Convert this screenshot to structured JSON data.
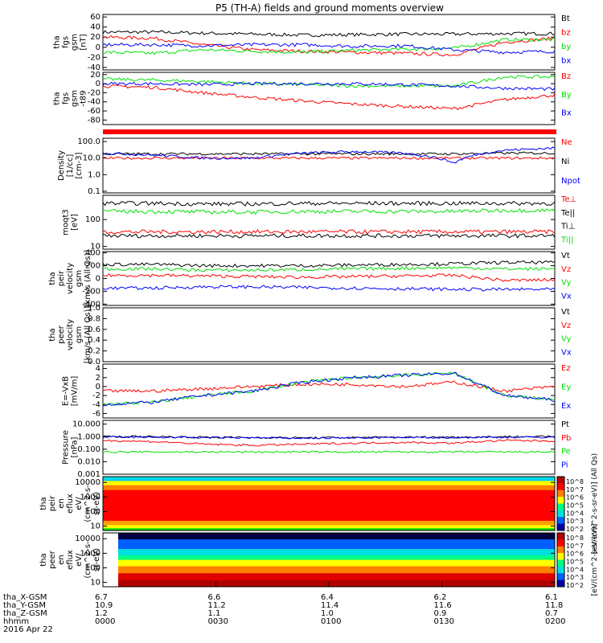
{
  "title": "P5 (TH-A) fields and ground moments overview",
  "colors": {
    "black": "#000000",
    "red": "#ff0000",
    "green": "#00e000",
    "blue": "#0000ff"
  },
  "panels": [
    {
      "id": "fgs",
      "ylabel": [
        "tha",
        "fgs",
        "gsm",
        "[nT]"
      ],
      "ticks": [
        {
          "v": 60,
          "t": "60"
        },
        {
          "v": 40,
          "t": "40"
        },
        {
          "v": 20,
          "t": "20"
        },
        {
          "v": 0,
          "t": "0"
        },
        {
          "v": -20,
          "t": "-20"
        },
        {
          "v": -40,
          "t": "-40"
        }
      ],
      "legend": [
        {
          "t": "Bt",
          "c": "black"
        },
        {
          "t": "bz",
          "c": "red"
        },
        {
          "t": "by",
          "c": "green"
        },
        {
          "t": "bx",
          "c": "blue"
        }
      ]
    },
    {
      "id": "fgs_model",
      "ylabel": [
        "tha",
        "fgs",
        "gsm",
        "-t89"
      ],
      "ticks": [
        {
          "v": 20,
          "t": "20"
        },
        {
          "v": 0,
          "t": "0"
        },
        {
          "v": -20,
          "t": "-20"
        },
        {
          "v": -40,
          "t": "-40"
        },
        {
          "v": -60,
          "t": "-60"
        },
        {
          "v": -80,
          "t": "-80"
        }
      ],
      "legend": [
        {
          "t": "Bz",
          "c": "red"
        },
        {
          "t": "By",
          "c": "green"
        },
        {
          "t": "Bx",
          "c": "blue"
        }
      ]
    },
    {
      "id": "density",
      "ylabel": [
        "Density",
        "[1/cc]",
        "[cm-3]"
      ],
      "ticks": [
        {
          "v": 2,
          "t": "100.0"
        },
        {
          "v": 1,
          "t": "10.0"
        },
        {
          "v": 0,
          "t": "1.0"
        },
        {
          "v": -1,
          "t": "0.1"
        }
      ],
      "legend": [
        {
          "t": "Ne",
          "c": "red"
        },
        {
          "t": "Ni",
          "c": "black"
        },
        {
          "t": "Npot",
          "c": "blue"
        }
      ]
    },
    {
      "id": "temp",
      "ylabel": [
        "moqt3",
        "[eV]"
      ],
      "ticks": [
        {
          "v": 2,
          "t": "100"
        },
        {
          "v": 1,
          "t": "10"
        }
      ],
      "legend": [
        {
          "t": "Te⊥",
          "c": "red"
        },
        {
          "t": "Te||",
          "c": "black"
        },
        {
          "t": "Ti⊥",
          "c": "black"
        },
        {
          "t": "Ti||",
          "c": "green"
        }
      ]
    },
    {
      "id": "peir_vel",
      "ylabel": [
        "tha",
        "peir",
        "velocity",
        "gsm",
        "[km/s (All Qs)]"
      ],
      "ticks": [
        {
          "v": 400,
          "t": "400"
        },
        {
          "v": 200,
          "t": "200"
        },
        {
          "v": 0,
          "t": "0"
        },
        {
          "v": -200,
          "t": "-200"
        },
        {
          "v": -400,
          "t": "-400"
        }
      ],
      "legend": [
        {
          "t": "Vt",
          "c": "black"
        },
        {
          "t": "Vz",
          "c": "red"
        },
        {
          "t": "Vy",
          "c": "green"
        },
        {
          "t": "Vx",
          "c": "blue"
        }
      ]
    },
    {
      "id": "peer_vel",
      "ylabel": [
        "tha",
        "peer",
        "velocity",
        "gsm",
        "[km/s (All Qs)]"
      ],
      "ticks": [
        {
          "v": 1.0,
          "t": "1.0"
        },
        {
          "v": 0.8,
          "t": "0.8"
        },
        {
          "v": 0.6,
          "t": "0.6"
        },
        {
          "v": 0.4,
          "t": "0.4"
        },
        {
          "v": 0.2,
          "t": "0.2"
        },
        {
          "v": 0.0,
          "t": "0.0"
        }
      ],
      "legend": [
        {
          "t": "Vt",
          "c": "black"
        },
        {
          "t": "Vz",
          "c": "red"
        },
        {
          "t": "Vy",
          "c": "green"
        },
        {
          "t": "Vx",
          "c": "blue"
        }
      ]
    },
    {
      "id": "efield",
      "ylabel": [
        "E=-VxB",
        "[mV/m]"
      ],
      "ticks": [
        {
          "v": 4,
          "t": "4"
        },
        {
          "v": 2,
          "t": "2"
        },
        {
          "v": 0,
          "t": "0"
        },
        {
          "v": -2,
          "t": "-2"
        },
        {
          "v": -4,
          "t": "-4"
        },
        {
          "v": -6,
          "t": "-6"
        }
      ],
      "legend": [
        {
          "t": "Ez",
          "c": "red"
        },
        {
          "t": "Ey",
          "c": "green"
        },
        {
          "t": "Ex",
          "c": "blue"
        }
      ]
    },
    {
      "id": "pressure",
      "ylabel": [
        "Pressure",
        "[nPa]"
      ],
      "ticks": [
        {
          "v": 1,
          "t": "10.000"
        },
        {
          "v": 0,
          "t": "1.000"
        },
        {
          "v": -1,
          "t": "0.100"
        },
        {
          "v": -2,
          "t": "0.010"
        },
        {
          "v": -3,
          "t": "0.001"
        }
      ],
      "legend": [
        {
          "t": "Pt",
          "c": "black"
        },
        {
          "t": "Pb",
          "c": "red"
        },
        {
          "t": "Pe",
          "c": "green"
        },
        {
          "t": "Pi",
          "c": "blue"
        }
      ]
    },
    {
      "id": "peir_flux",
      "ylabel": [
        "tha",
        "peir",
        "en",
        "eflux",
        "eV/",
        "(cm^2-s-",
        "sr-eV)"
      ],
      "ticks": [
        {
          "v": 4,
          "t": "10000"
        },
        {
          "v": 3,
          "t": "1000"
        },
        {
          "v": 2,
          "t": "100"
        },
        {
          "v": 1,
          "t": "10"
        }
      ]
    },
    {
      "id": "peer_flux",
      "ylabel": [
        "tha",
        "peer",
        "en",
        "eflux",
        "eV/",
        "(cm^2-s-",
        "sr-eV)"
      ],
      "ticks": [
        {
          "v": 4,
          "t": "10000"
        },
        {
          "v": 3,
          "t": "1000"
        },
        {
          "v": 2,
          "t": "100"
        },
        {
          "v": 1,
          "t": "10"
        }
      ]
    }
  ],
  "colorbars": [
    {
      "title": "[eV/(cm^2-s-sr-eV)] (All Qs)",
      "ticks": [
        "10^8",
        "10^7",
        "10^6",
        "10^5",
        "10^4",
        "10^3",
        "10^2"
      ]
    },
    {
      "title": "[eV/(cm^2-s-sr-eV)]",
      "ticks": [
        "10^8",
        "10^7",
        "10^6",
        "10^5",
        "10^4",
        "10^3",
        "10^2"
      ]
    }
  ],
  "footer": {
    "row_labels": [
      "tha_X-GSM",
      "tha_Y-GSM",
      "tha_Z-GSM",
      "hhmm",
      "2016 Apr 22"
    ],
    "columns": [
      [
        "6.7",
        "10.9",
        "1.2",
        "0000"
      ],
      [
        "6.6",
        "11.2",
        "1.1",
        "0030"
      ],
      [
        "6.4",
        "11.4",
        "1.0",
        "0100"
      ],
      [
        "6.2",
        "11.6",
        "0.9",
        "0130"
      ],
      [
        "6.1",
        "11.8",
        "0.7",
        "0200"
      ]
    ]
  },
  "chart_data": [
    {
      "type": "line",
      "panel": "fgs",
      "ylabel": "tha fgs gsm [nT]",
      "ylim": [
        -45,
        65
      ],
      "x_range": [
        "0000",
        "0200"
      ],
      "series": [
        {
          "name": "Bt",
          "approx": [
            30,
            30,
            28,
            26,
            24,
            25,
            26,
            26,
            27,
            27
          ]
        },
        {
          "name": "bz",
          "approx": [
            20,
            18,
            5,
            -5,
            -8,
            -10,
            -12,
            -15,
            10,
            18
          ]
        },
        {
          "name": "by",
          "approx": [
            -10,
            -12,
            -5,
            -8,
            -10,
            -6,
            -4,
            -2,
            15,
            15
          ]
        },
        {
          "name": "bx",
          "approx": [
            5,
            5,
            3,
            5,
            5,
            2,
            3,
            -5,
            -10,
            -8
          ]
        }
      ]
    },
    {
      "type": "line",
      "panel": "fgs_model",
      "ylabel": "tha fgs gsm -t89",
      "ylim": [
        -90,
        25
      ],
      "x_range": [
        "0000",
        "0200"
      ],
      "series": [
        {
          "name": "Bz",
          "approx": [
            -5,
            -8,
            -20,
            -30,
            -38,
            -45,
            -50,
            -55,
            -35,
            -25
          ]
        },
        {
          "name": "By",
          "approx": [
            10,
            8,
            5,
            0,
            -2,
            -5,
            -5,
            -5,
            15,
            15
          ]
        },
        {
          "name": "Bx",
          "approx": [
            0,
            0,
            -2,
            0,
            0,
            0,
            -2,
            -5,
            -10,
            -12
          ]
        }
      ]
    },
    {
      "type": "line",
      "panel": "density",
      "ylabel": "Density [1/cc] [cm-3]",
      "scale": "log",
      "ylim": [
        0.07,
        150
      ],
      "x_range": [
        "0000",
        "0200"
      ],
      "series": [
        {
          "name": "Ne",
          "approx": [
            10,
            10,
            10,
            10,
            10,
            10,
            10,
            10,
            10,
            10
          ]
        },
        {
          "name": "Ni",
          "approx": [
            18,
            18,
            18,
            18,
            18,
            18,
            18,
            18,
            20,
            20
          ]
        },
        {
          "name": "Npot",
          "approx": [
            20,
            15,
            10,
            10,
            20,
            25,
            20,
            5,
            30,
            40
          ]
        }
      ]
    },
    {
      "type": "line",
      "panel": "temp",
      "ylabel": "moqt3 [eV]",
      "scale": "log",
      "ylim": [
        8,
        800
      ],
      "x_range": [
        "0000",
        "0200"
      ],
      "series": [
        {
          "name": "Te⊥",
          "approx": [
            35,
            35,
            35,
            35,
            35,
            35,
            35,
            35,
            35,
            35
          ]
        },
        {
          "name": "Te||",
          "approx": [
            25,
            25,
            25,
            25,
            25,
            25,
            25,
            25,
            25,
            25
          ]
        },
        {
          "name": "Ti⊥",
          "approx": [
            400,
            400,
            380,
            380,
            400,
            400,
            400,
            400,
            400,
            400
          ]
        },
        {
          "name": "Ti||",
          "approx": [
            200,
            200,
            190,
            190,
            200,
            200,
            200,
            200,
            220,
            220
          ]
        }
      ]
    },
    {
      "type": "line",
      "panel": "peir_vel",
      "ylabel": "tha peir velocity gsm [km/s (All Qs)]",
      "ylim": [
        -420,
        420
      ],
      "x_range": [
        "0000",
        "0200"
      ],
      "series": [
        {
          "name": "Vt",
          "approx": [
            220,
            220,
            200,
            200,
            200,
            210,
            220,
            230,
            250,
            250
          ]
        },
        {
          "name": "Vz",
          "approx": [
            50,
            50,
            40,
            30,
            20,
            30,
            40,
            50,
            -30,
            -20
          ]
        },
        {
          "name": "Vy",
          "approx": [
            150,
            150,
            130,
            130,
            140,
            150,
            160,
            170,
            150,
            150
          ]
        },
        {
          "name": "Vx",
          "approx": [
            -150,
            -150,
            -130,
            -130,
            -140,
            -150,
            -160,
            -170,
            -170,
            -170
          ]
        }
      ]
    },
    {
      "type": "line",
      "panel": "efield",
      "ylabel": "E=-VxB [mV/m]",
      "ylim": [
        -7,
        5
      ],
      "x_range": [
        "0000",
        "0200"
      ],
      "series": [
        {
          "name": "Ez",
          "approx": [
            -1,
            -1,
            -0.5,
            0,
            0.5,
            0.5,
            0,
            1,
            -1,
            0
          ]
        },
        {
          "name": "Ey",
          "approx": [
            -4,
            -3.5,
            -2,
            -1,
            1,
            2,
            2.5,
            3,
            -2,
            -3
          ]
        },
        {
          "name": "Ex",
          "approx": [
            -4,
            -3.5,
            -2,
            -1,
            1,
            2,
            2.5,
            3,
            -2,
            -3
          ]
        }
      ]
    },
    {
      "type": "line",
      "panel": "pressure",
      "ylabel": "Pressure [nPa]",
      "scale": "log",
      "ylim": [
        0.001,
        10
      ],
      "x_range": [
        "0000",
        "0200"
      ],
      "series": [
        {
          "name": "Pt",
          "approx": [
            1,
            1,
            0.9,
            0.85,
            0.8,
            0.85,
            0.9,
            0.9,
            1,
            1
          ]
        },
        {
          "name": "Pb",
          "approx": [
            0.5,
            0.4,
            0.25,
            0.2,
            0.25,
            0.3,
            0.35,
            0.3,
            0.5,
            0.45
          ]
        },
        {
          "name": "Pe",
          "approx": [
            0.06,
            0.06,
            0.06,
            0.06,
            0.06,
            0.06,
            0.06,
            0.06,
            0.06,
            0.06
          ]
        },
        {
          "name": "Pi",
          "approx": [
            0.9,
            0.9,
            0.85,
            0.8,
            0.75,
            0.8,
            0.85,
            0.85,
            0.9,
            0.9
          ]
        }
      ]
    },
    {
      "type": "heatmap",
      "panel": "peir_flux",
      "ylabel": "tha peir en eflux eV/(cm^2-s-sr-eV)",
      "ylim": [
        5,
        25000
      ],
      "scale": "log",
      "x_range": [
        "0000",
        "0200"
      ],
      "colorbar_range": [
        "10^2",
        "10^8"
      ]
    },
    {
      "type": "heatmap",
      "panel": "peer_flux",
      "ylabel": "tha peer en eflux eV/(cm^2-s-sr-eV)",
      "ylim": [
        5,
        25000
      ],
      "scale": "log",
      "x_range": [
        "0000",
        "0200"
      ],
      "colorbar_range": [
        "10^2",
        "10^8"
      ]
    }
  ]
}
